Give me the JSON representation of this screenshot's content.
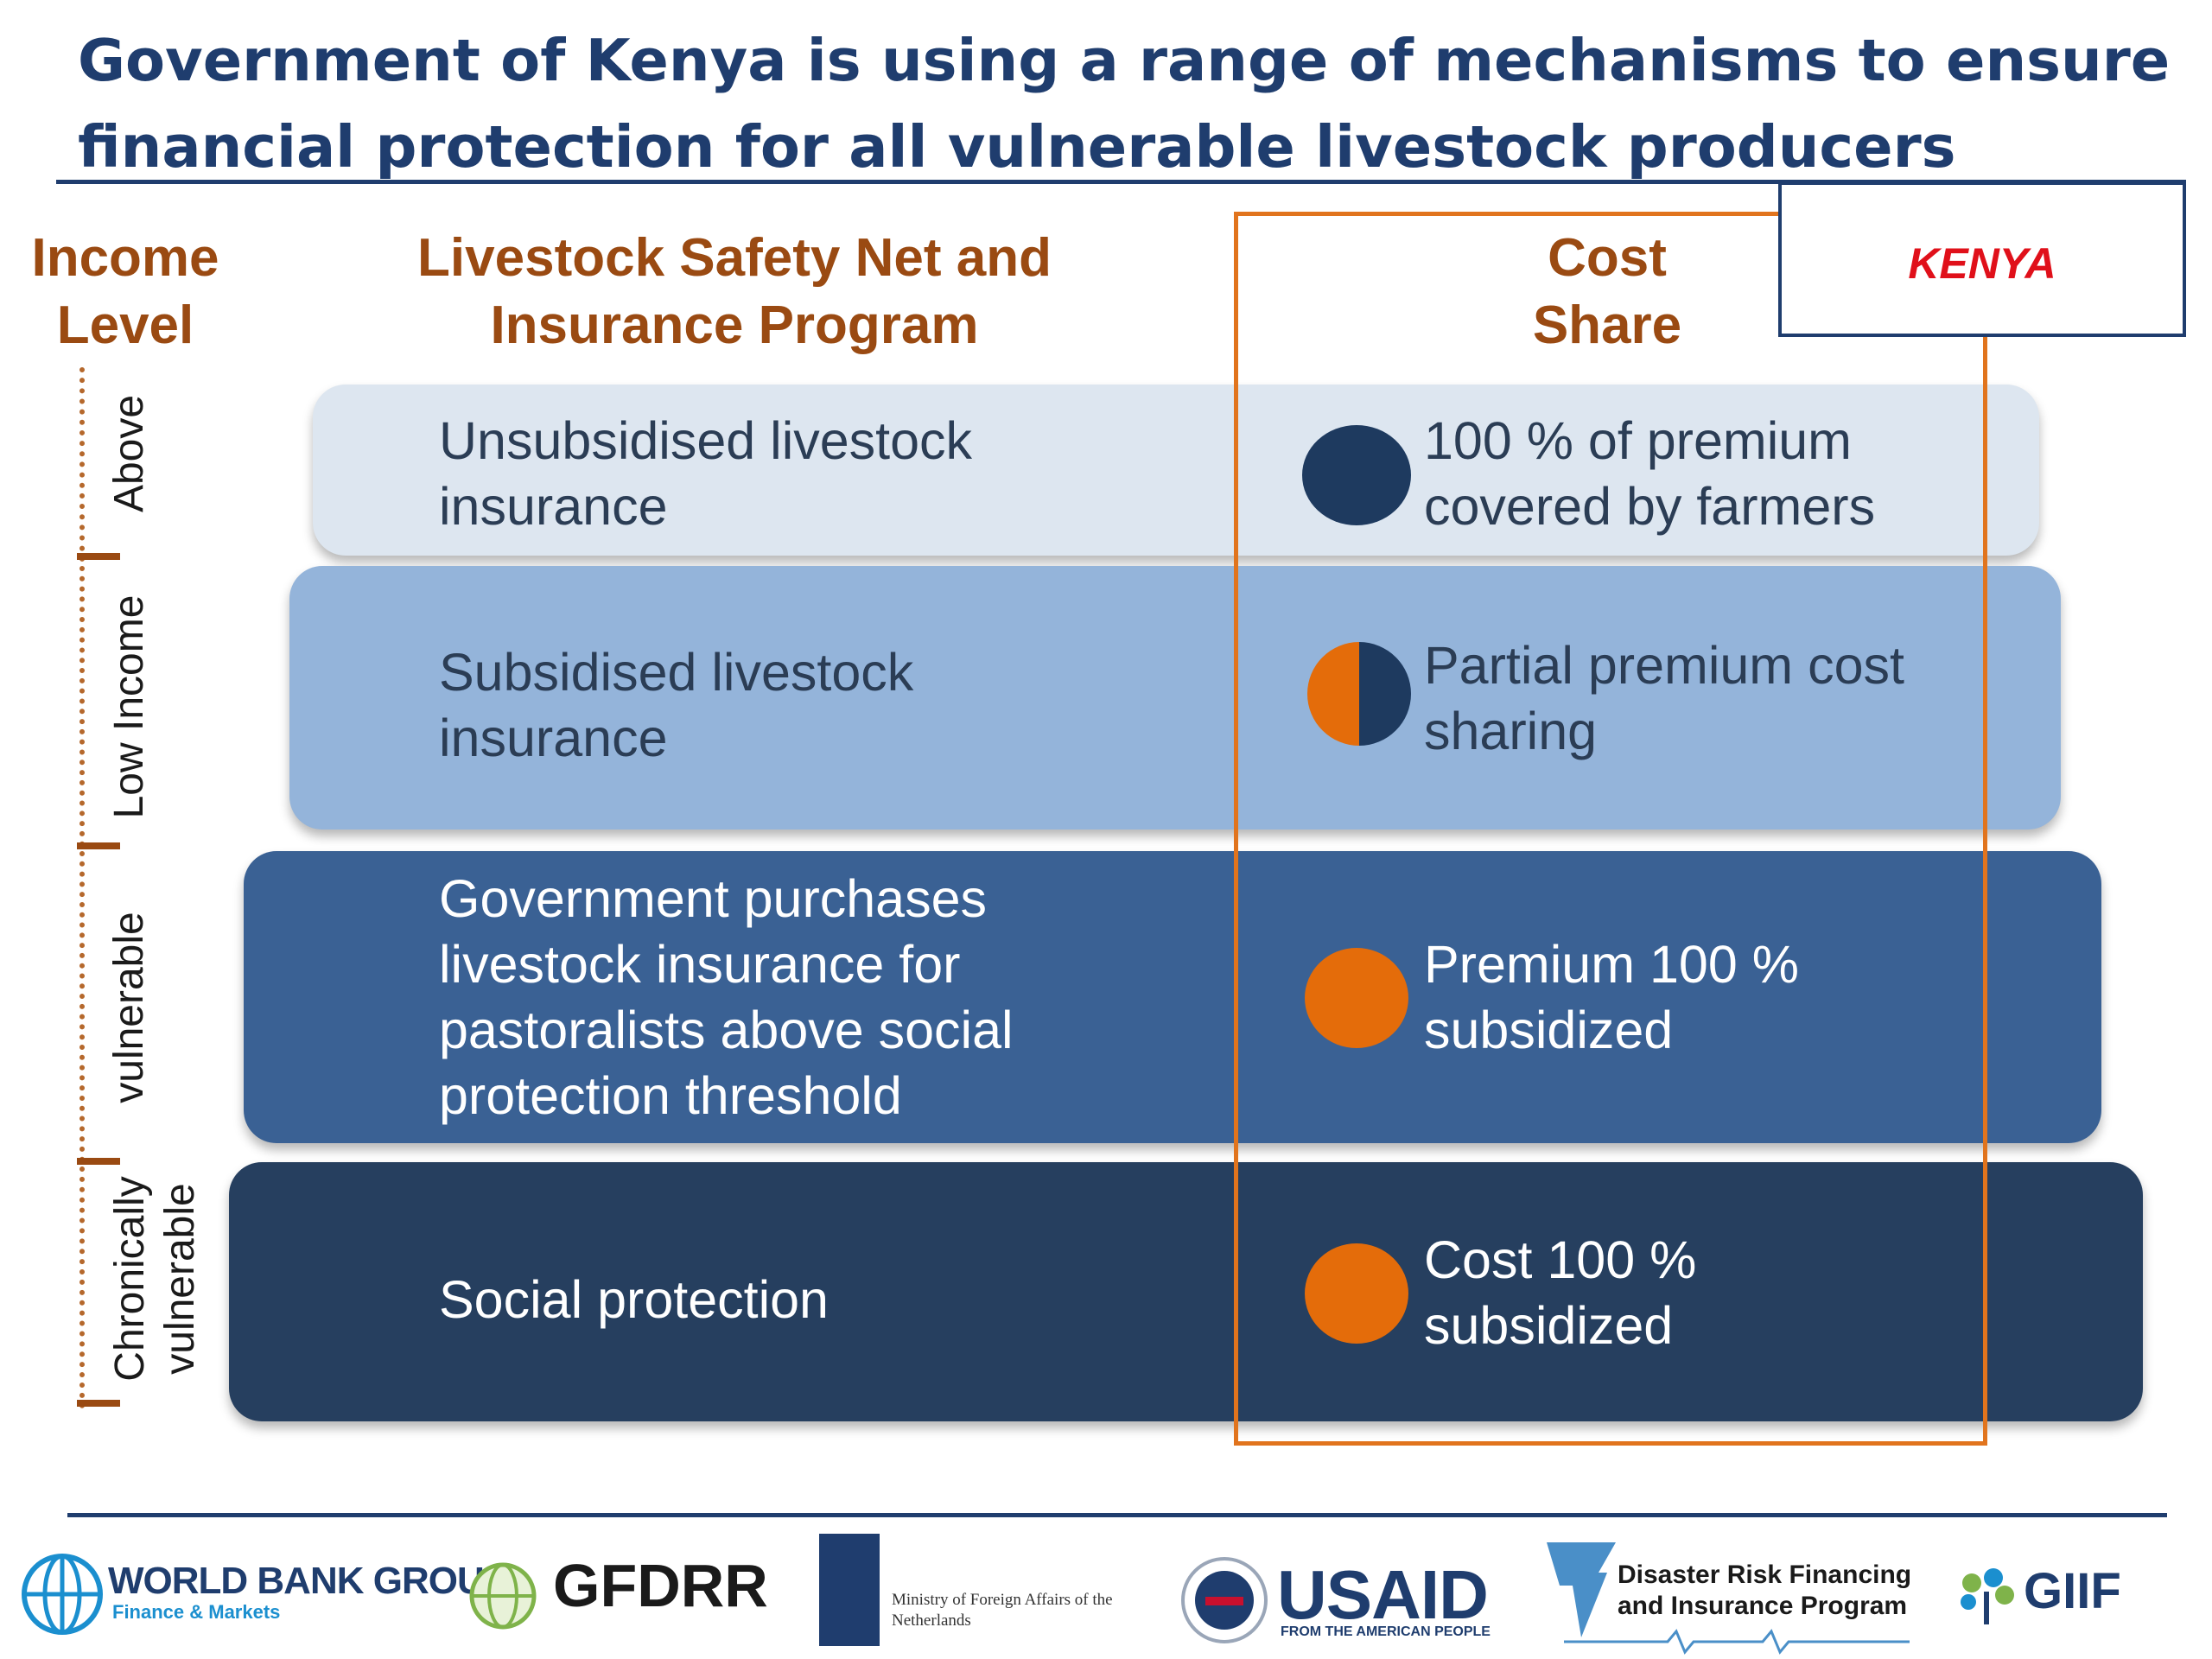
{
  "title": {
    "line1": "Government of Kenya is using a range of mechanisms to ensure",
    "line2": "financial protection for all vulnerable livestock producers"
  },
  "headers": {
    "income_line1": "Income",
    "income_line2": "Level",
    "program_line1": "Livestock Safety Net and",
    "program_line2": "Insurance Program",
    "cost_line1": "Cost",
    "cost_line2": "Share"
  },
  "country_tag": "KENYA",
  "income_levels": [
    {
      "label": "Above"
    },
    {
      "label": "Low Income"
    },
    {
      "label": "vulnerable"
    },
    {
      "label_line1": "Chronically",
      "label_line2": "vulnerable"
    }
  ],
  "tiers": [
    {
      "program_line1": "Unsubsidised livestock",
      "program_line2": "insurance",
      "cost_line1": "100 % of premium",
      "cost_line2": "covered by farmers",
      "indicator": "full-navy-circle",
      "fill": "#dde6f0"
    },
    {
      "program_line1": "Subsidised livestock",
      "program_line2": "insurance",
      "cost_line1": "Partial premium cost",
      "cost_line2": "sharing",
      "indicator": "half-orange-half-navy-circle",
      "fill": "#94b4da"
    },
    {
      "program_line1": "Government purchases",
      "program_line2": "livestock insurance for",
      "program_line3": "pastoralists above social",
      "program_line4": "protection threshold",
      "cost_line1": "Premium 100 %",
      "cost_line2": "subsidized",
      "indicator": "full-orange-circle",
      "fill": "#3a6194"
    },
    {
      "program_line1": "Social protection",
      "cost_line1": "Cost 100 %",
      "cost_line2": "subsidized",
      "indicator": "full-orange-circle",
      "fill": "#263f5f"
    }
  ],
  "colors": {
    "title": "#1f3d6e",
    "header": "#9a4a12",
    "highlight_frame": "#e1741d",
    "kenya": "#e0101a",
    "navy": "#1e3a5f",
    "orange": "#e46c0a"
  },
  "footer": {
    "logos": [
      {
        "name": "world-bank-group",
        "text": "WORLD BANK GROUP",
        "subtext": "Finance & Markets"
      },
      {
        "name": "gfdrr",
        "text": "GFDRR"
      },
      {
        "name": "netherlands-ministry",
        "text_line1": "Ministry of Foreign Affairs of the",
        "text_line2": "Netherlands"
      },
      {
        "name": "usaid",
        "text": "USAID",
        "subtext": "FROM THE AMERICAN PEOPLE"
      },
      {
        "name": "drfip",
        "text_line1": "Disaster Risk Financing",
        "text_line2": "and Insurance Program"
      },
      {
        "name": "giif",
        "text": "GIIF"
      }
    ]
  }
}
